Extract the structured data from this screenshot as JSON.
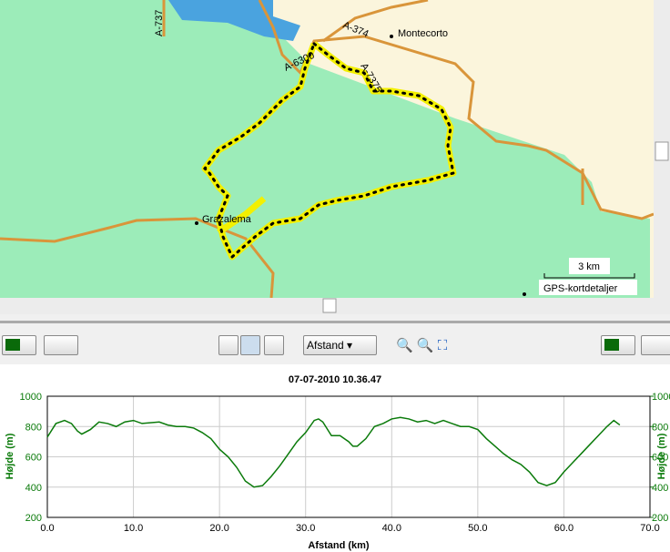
{
  "map": {
    "labels": [
      "A-737",
      "A-374",
      "Montecorto",
      "A-6300",
      "A-7375",
      "Grazalema"
    ],
    "scale": "3 km",
    "credit": "GPS-kortdetaljer"
  },
  "toolbar": {
    "axis_mode": "Afstand"
  },
  "chart_data": {
    "type": "line",
    "title": "07-07-2010 10.36.47",
    "xlabel": "Afstand (km)",
    "ylabel": "Højde (m)",
    "y2label": "Højde (m)",
    "x": [
      0,
      1,
      2,
      2.8,
      3.5,
      4,
      5,
      6,
      7,
      8,
      9,
      10,
      11,
      13,
      14,
      15,
      16,
      17,
      18,
      19,
      20,
      21,
      22,
      23,
      24,
      25,
      26,
      27,
      28,
      29,
      30,
      31,
      31.5,
      32,
      33,
      34,
      35,
      35.5,
      36,
      37,
      38,
      39,
      40,
      41,
      42,
      43,
      44,
      45,
      46,
      47,
      48,
      49,
      50,
      51,
      52,
      53,
      54,
      55,
      56,
      57,
      58,
      59,
      60,
      61,
      62,
      63,
      64,
      65,
      65.8,
      66.5
    ],
    "series": [
      {
        "name": "Højde",
        "color": "#0a7a0a",
        "values": [
          730,
          820,
          840,
          820,
          770,
          750,
          780,
          830,
          820,
          800,
          830,
          840,
          820,
          830,
          810,
          800,
          800,
          790,
          760,
          720,
          650,
          600,
          530,
          440,
          400,
          410,
          470,
          540,
          620,
          700,
          760,
          840,
          850,
          830,
          740,
          740,
          700,
          670,
          670,
          720,
          800,
          820,
          850,
          860,
          850,
          830,
          840,
          820,
          840,
          820,
          800,
          800,
          780,
          720,
          670,
          620,
          580,
          550,
          500,
          430,
          410,
          430,
          500,
          560,
          620,
          680,
          740,
          800,
          840,
          810
        ]
      }
    ],
    "xlim": [
      0,
      70
    ],
    "xticks": [
      {
        "value": 0,
        "label": "0.0"
      },
      {
        "value": 10,
        "label": "10.0"
      },
      {
        "value": 20,
        "label": "20.0"
      },
      {
        "value": 30,
        "label": "30.0"
      },
      {
        "value": 40,
        "label": "40.0"
      },
      {
        "value": 50,
        "label": "50.0"
      },
      {
        "value": 60,
        "label": "60.0"
      },
      {
        "value": 70,
        "label": "70.0"
      }
    ],
    "ylim": [
      200,
      1000
    ],
    "yticks": [
      200,
      400,
      600,
      800,
      1000
    ],
    "y2lim": [
      200,
      1000
    ],
    "y2ticks": [
      200,
      400,
      600,
      800,
      1000
    ],
    "grid": true
  }
}
